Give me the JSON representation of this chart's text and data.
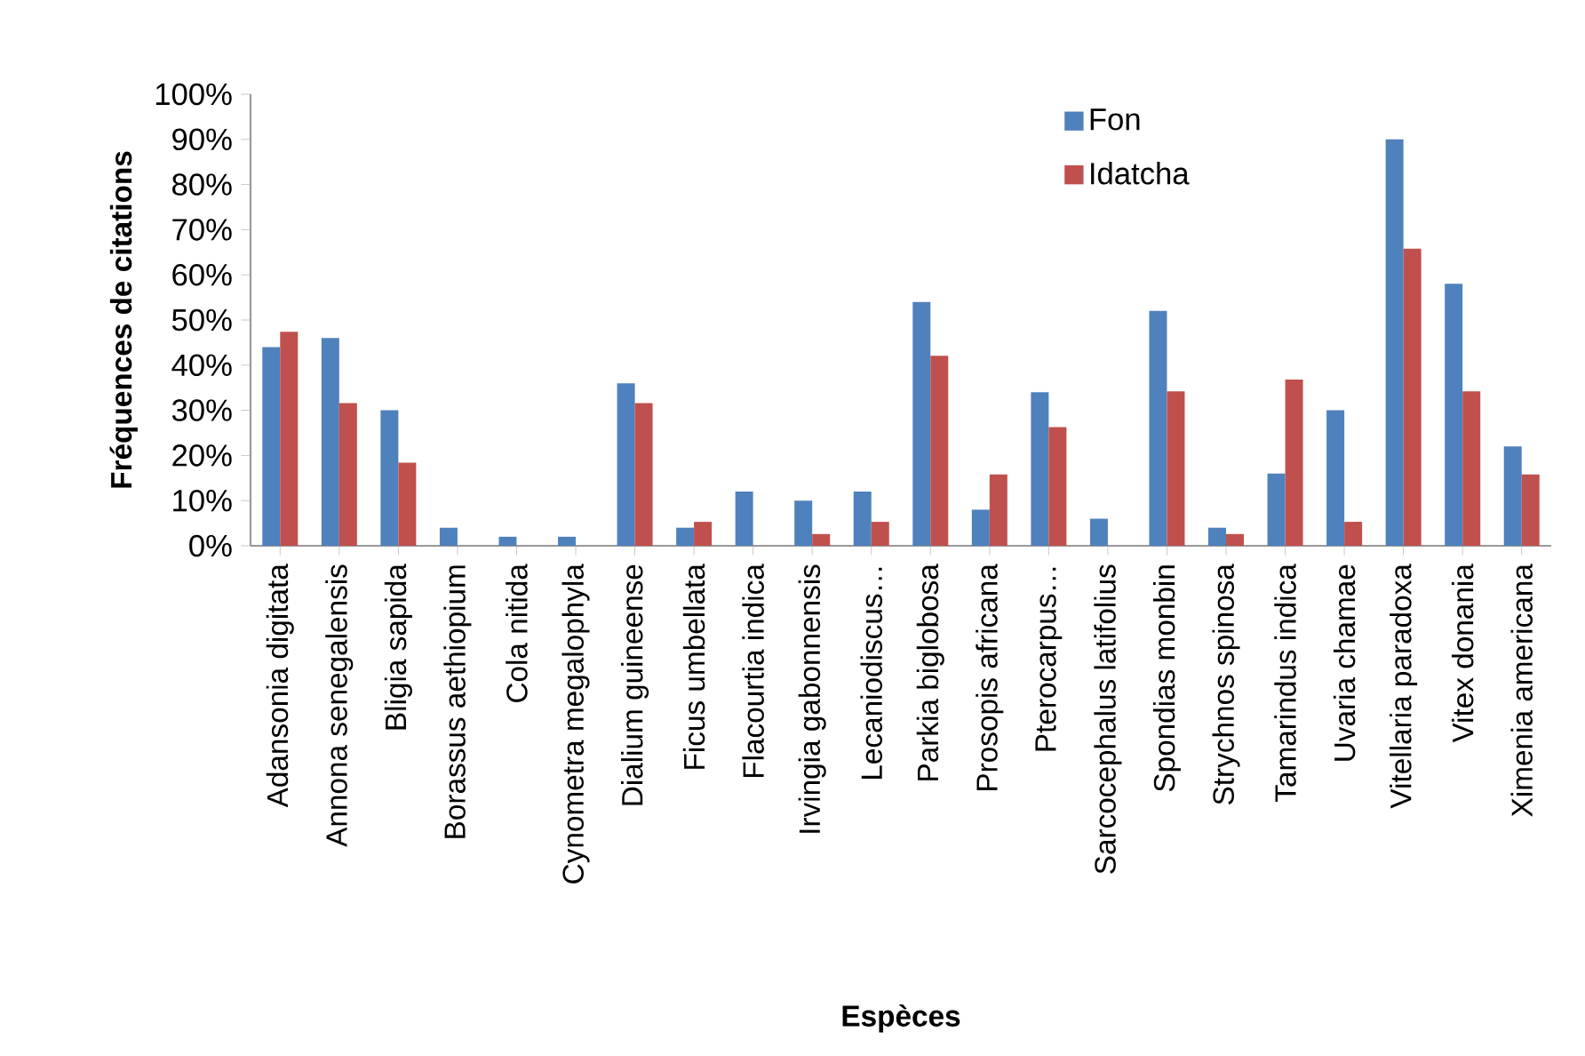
{
  "chart_data": {
    "type": "bar",
    "xlabel": "Espèces",
    "ylabel": "Fréquences de citations",
    "categories": [
      "Adansonia digitata",
      "Annona senegalensis",
      "Bligia sapida",
      "Borassus aethiopium",
      "Cola nitida",
      "Cynometra megalophyla",
      "Dialium guineense",
      "Ficus umbellata",
      "Flacourtia indica",
      "Irvingia gabonnensis",
      "Lecaniodiscus…",
      "Parkia biglobosa",
      "Prosopis africana",
      "Pterocarpus…",
      "Sarcocephalus latifolius",
      "Spondias monbin",
      "Strychnos spinosa",
      "Tamarindus indica",
      "Uvaria chamae",
      "Vitellaria paradoxa",
      "Vitex donania",
      "Ximenia americana"
    ],
    "series": [
      {
        "name": "Fon",
        "color": "#4f81bd",
        "values": [
          44,
          46,
          30,
          4,
          2,
          2,
          36,
          4,
          12,
          10,
          12,
          54,
          8,
          34,
          6,
          52,
          4,
          16,
          30,
          90,
          58,
          22
        ]
      },
      {
        "name": "Idatcha",
        "color": "#c0504d",
        "values": [
          47.4,
          31.6,
          18.4,
          0,
          0,
          0,
          31.6,
          5.3,
          0,
          2.6,
          5.3,
          42.1,
          15.8,
          26.3,
          0,
          34.2,
          2.6,
          36.8,
          5.3,
          65.8,
          34.2,
          15.8
        ]
      }
    ],
    "ylim": [
      0,
      100
    ],
    "yticks": [
      {
        "value": 0,
        "label": "0%"
      },
      {
        "value": 10,
        "label": "10%"
      },
      {
        "value": 20,
        "label": "20%"
      },
      {
        "value": 30,
        "label": "30%"
      },
      {
        "value": 40,
        "label": "40%"
      },
      {
        "value": 50,
        "label": "50%"
      },
      {
        "value": 60,
        "label": "60%"
      },
      {
        "value": 70,
        "label": "70%"
      },
      {
        "value": 80,
        "label": "80%"
      },
      {
        "value": 90,
        "label": "90%"
      },
      {
        "value": 100,
        "label": "100%"
      }
    ],
    "legend": "top right",
    "grid": false
  }
}
